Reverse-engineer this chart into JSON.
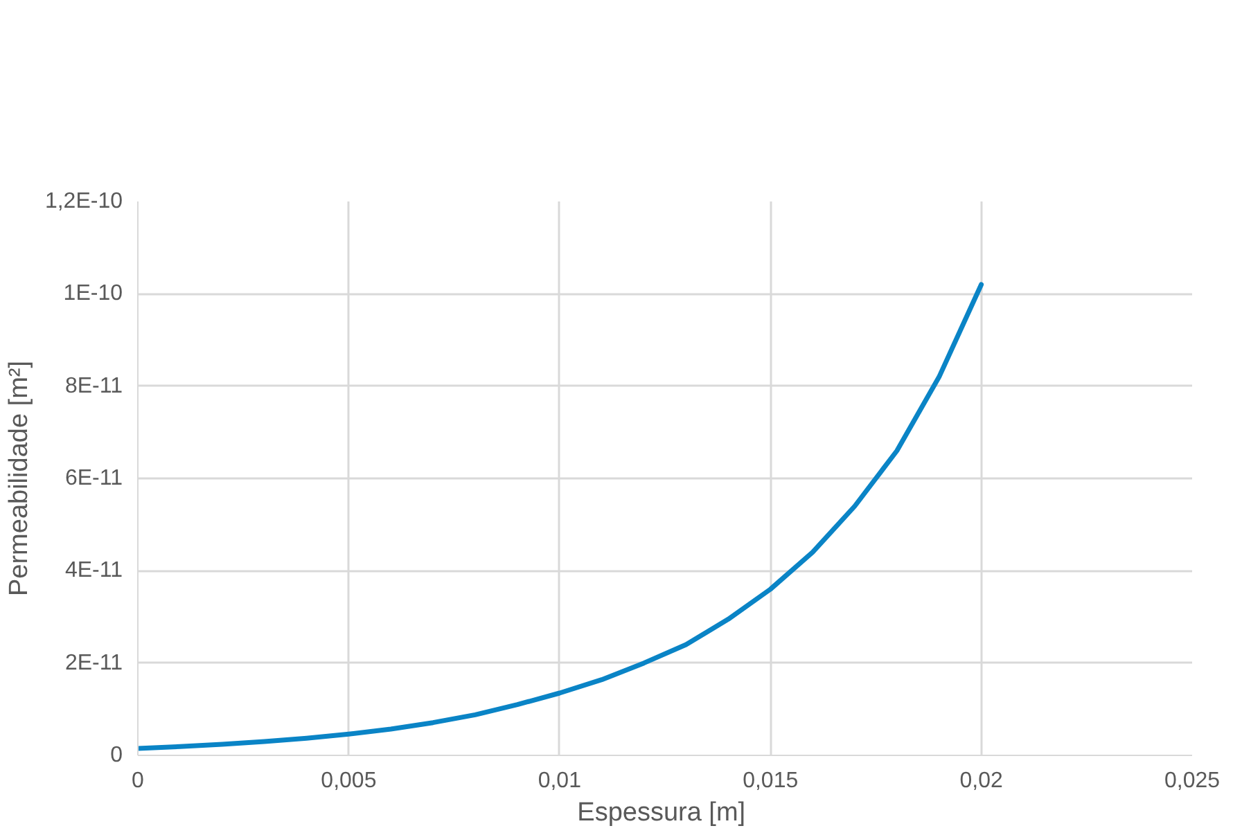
{
  "chart_data": {
    "type": "line",
    "xlabel": "Espessura  [m]",
    "ylabel": "Permeabilidade [m²]",
    "x": [
      0,
      0.001,
      0.002,
      0.003,
      0.004,
      0.005,
      0.006,
      0.007,
      0.008,
      0.009,
      0.01,
      0.011,
      0.012,
      0.013,
      0.014,
      0.015,
      0.016,
      0.017,
      0.018,
      0.019,
      0.02
    ],
    "series": [
      {
        "color": "#0a84c6",
        "values": [
          1.5e-12,
          1.9e-12,
          2.4e-12,
          3e-12,
          3.7e-12,
          4.6e-12,
          5.7e-12,
          7.1e-12,
          8.8e-12,
          1.1e-11,
          1.35e-11,
          1.64e-11,
          2e-11,
          2.4e-11,
          2.95e-11,
          3.6e-11,
          4.4e-11,
          5.4e-11,
          6.6e-11,
          8.2e-11,
          1.02e-10
        ]
      }
    ],
    "xlim": [
      0,
      0.025
    ],
    "xticks": [
      0,
      {
        "value": 0.005,
        "label": "0,005"
      },
      {
        "value": 0.01,
        "label": "0,01"
      },
      {
        "value": 0.015,
        "label": "0,015"
      },
      {
        "value": 0.02,
        "label": "0,02"
      },
      {
        "value": 0.025,
        "label": "0,025"
      }
    ],
    "ylim": [
      0,
      1.2e-10
    ],
    "yticks": [
      0,
      {
        "value": 2e-11,
        "label": "2E-11"
      },
      {
        "value": 4e-11,
        "label": "4E-11"
      },
      {
        "value": 6e-11,
        "label": "6E-11"
      },
      {
        "value": 8e-11,
        "label": "8E-11"
      },
      {
        "value": 1e-10,
        "label": "1E-10"
      },
      {
        "value": 1.2e-10,
        "label": "1,2E-10"
      }
    ],
    "grid": true,
    "line_style": "solid"
  }
}
